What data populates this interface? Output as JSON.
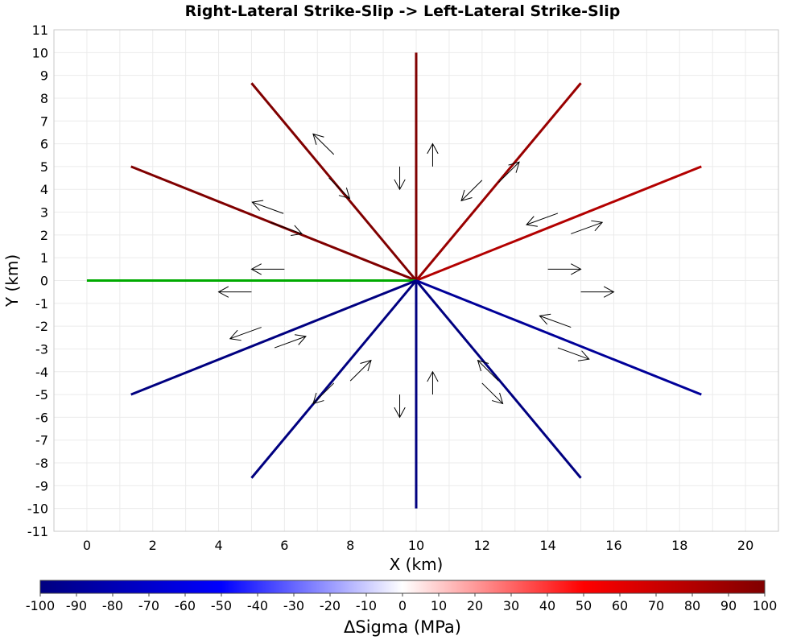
{
  "chart_data": {
    "type": "line",
    "title": "Right-Lateral Strike-Slip -> Left-Lateral Strike-Slip",
    "xlabel": "X (km)",
    "ylabel": "Y (km)",
    "xlim": [
      -1,
      21
    ],
    "ylim": [
      -11,
      11
    ],
    "xticks": [
      "0",
      "2",
      "4",
      "6",
      "8",
      "10",
      "12",
      "14",
      "16",
      "18",
      "20"
    ],
    "yticks": [
      "11",
      "10",
      "9",
      "8",
      "7",
      "6",
      "5",
      "4",
      "3",
      "2",
      "1",
      "0",
      "-1",
      "-2",
      "-3",
      "-4",
      "-5",
      "-6",
      "-7",
      "-8",
      "-9",
      "-10",
      "-11"
    ],
    "grid": true,
    "origin": [
      10,
      0
    ],
    "segments": [
      {
        "angle": 90,
        "length": 10,
        "dsigma": 100
      },
      {
        "angle": 60,
        "length": 10,
        "dsigma": 90
      },
      {
        "angle": 30,
        "length": 10,
        "dsigma": 80
      },
      {
        "angle": 120,
        "length": 10,
        "dsigma": 100
      },
      {
        "angle": 150,
        "length": 10,
        "dsigma": 100
      },
      {
        "angle": 180,
        "length": 10,
        "dsigma": 0,
        "color": "#00aa00"
      },
      {
        "angle": 210,
        "length": 10,
        "dsigma": -100
      },
      {
        "angle": 240,
        "length": 10,
        "dsigma": -100
      },
      {
        "angle": 270,
        "length": 10,
        "dsigma": -100
      },
      {
        "angle": 300,
        "length": 10,
        "dsigma": -100
      },
      {
        "angle": 330,
        "length": 10,
        "dsigma": -90
      }
    ],
    "slip_arrows": [
      [
        10.5,
        5.0,
        10.5,
        6.0
      ],
      [
        9.5,
        5.0,
        9.5,
        4.0
      ],
      [
        10.5,
        -5.0,
        10.5,
        -4.0
      ],
      [
        9.5,
        -5.0,
        9.5,
        -6.0
      ],
      [
        6.0,
        0.5,
        5.0,
        0.5
      ],
      [
        5.0,
        -0.5,
        4.0,
        -0.5
      ],
      [
        14.0,
        0.5,
        15.0,
        0.5
      ],
      [
        15.0,
        -0.5,
        16.0,
        -0.5
      ],
      [
        5.58,
        2.55,
        6.53,
        2.05
      ],
      [
        5.97,
        2.94,
        5.02,
        3.44
      ],
      [
        7.35,
        4.5,
        7.98,
        3.6
      ],
      [
        7.5,
        5.53,
        6.87,
        6.43
      ],
      [
        12.0,
        4.4,
        11.37,
        3.5
      ],
      [
        12.5,
        4.3,
        13.13,
        5.2
      ],
      [
        14.3,
        2.95,
        13.35,
        2.45
      ],
      [
        14.7,
        2.05,
        15.65,
        2.55
      ],
      [
        14.7,
        -2.05,
        13.75,
        -1.55
      ],
      [
        14.3,
        -2.95,
        15.25,
        -3.45
      ],
      [
        12.5,
        -4.4,
        11.87,
        -3.5
      ],
      [
        12.0,
        -4.5,
        12.63,
        -5.4
      ],
      [
        8.0,
        -4.4,
        8.63,
        -3.5
      ],
      [
        7.5,
        -4.5,
        6.87,
        -5.4
      ],
      [
        5.7,
        -2.95,
        6.65,
        -2.45
      ],
      [
        5.3,
        -2.05,
        4.35,
        -2.55
      ]
    ],
    "colorbar": {
      "label": "ΔSigma (MPa)",
      "range": [
        -100,
        100
      ],
      "ticks": [
        "-100",
        "-90",
        "-80",
        "-70",
        "-60",
        "-50",
        "-40",
        "-30",
        "-20",
        "-10",
        "0",
        "10",
        "20",
        "30",
        "40",
        "50",
        "60",
        "70",
        "80",
        "90",
        "100"
      ],
      "stops": [
        [
          -100,
          "#000080"
        ],
        [
          -50,
          "#0000ff"
        ],
        [
          0,
          "#ffffff"
        ],
        [
          50,
          "#ff0000"
        ],
        [
          100,
          "#800000"
        ]
      ]
    }
  }
}
